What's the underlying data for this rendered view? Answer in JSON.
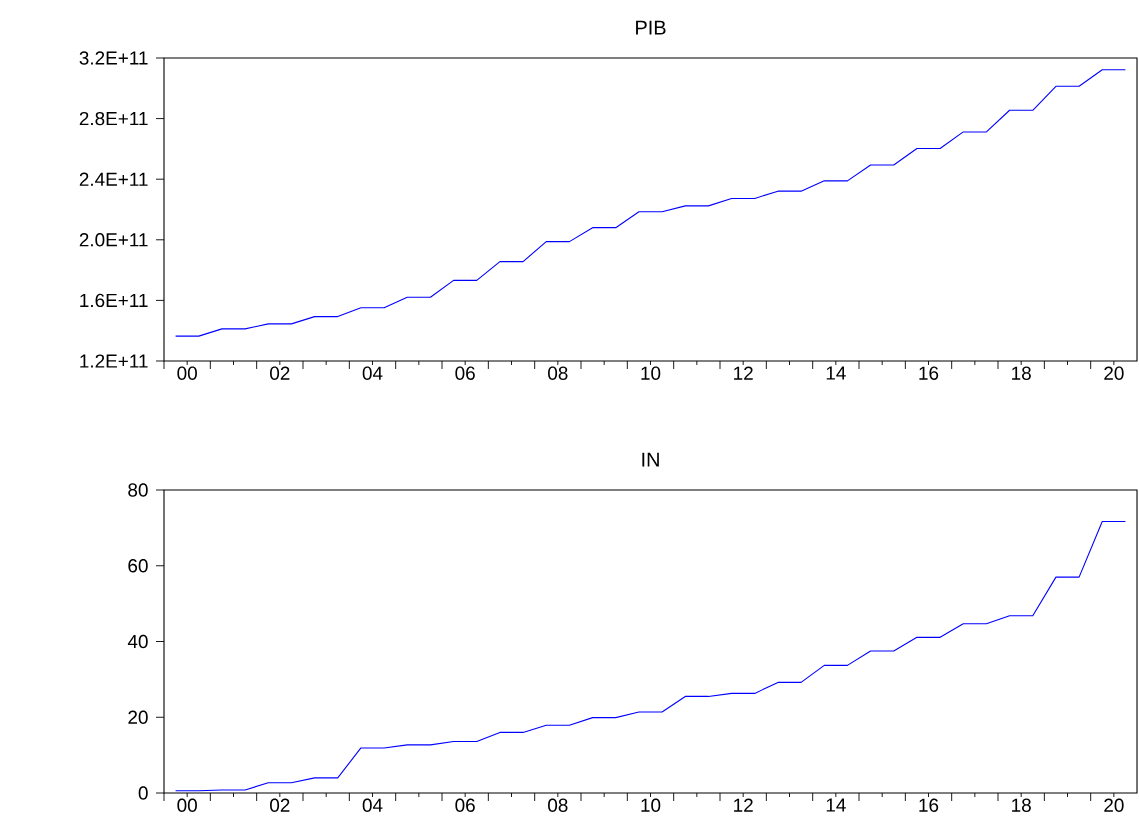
{
  "chart_data": [
    {
      "type": "line",
      "title": "PIB",
      "grid": false,
      "x": [
        "2000-04",
        "2000-10",
        "2001-04",
        "2001-10",
        "2002-04",
        "2002-10",
        "2003-04",
        "2003-10",
        "2004-04",
        "2004-10",
        "2005-04",
        "2005-10",
        "2006-04",
        "2006-10",
        "2007-04",
        "2007-10",
        "2008-04",
        "2008-10",
        "2009-04",
        "2009-10",
        "2010-04",
        "2010-10",
        "2011-04",
        "2011-10",
        "2012-04",
        "2012-10",
        "2013-04",
        "2013-10",
        "2014-04",
        "2014-10",
        "2015-04",
        "2015-10",
        "2016-04",
        "2016-10",
        "2017-04",
        "2017-10",
        "2018-04",
        "2018-10",
        "2019-04",
        "2019-10",
        "2020-04",
        "2020-10"
      ],
      "series": [
        {
          "color": "#0000ff",
          "values": [
            136400000000.0,
            136400000000.0,
            141200000000.0,
            141200000000.0,
            144500000000.0,
            144500000000.0,
            149300000000.0,
            149300000000.0,
            155100000000.0,
            155100000000.0,
            162100000000.0,
            162100000000.0,
            173200000000.0,
            173200000000.0,
            185600000000.0,
            185600000000.0,
            198800000000.0,
            198800000000.0,
            208000000000.0,
            208000000000.0,
            218500000000.0,
            218500000000.0,
            222400000000.0,
            222400000000.0,
            227300000000.0,
            227300000000.0,
            232100000000.0,
            232100000000.0,
            238900000000.0,
            238900000000.0,
            249400000000.0,
            249400000000.0,
            260300000000.0,
            260300000000.0,
            271200000000.0,
            271200000000.0,
            285500000000.0,
            285500000000.0,
            301300000000.0,
            301300000000.0,
            312200000000.0,
            312200000000.0
          ]
        }
      ],
      "ylim": [
        120000000000.0,
        320000000000.0
      ],
      "yticks": [
        {
          "value": 120000000000.0,
          "label": "1.2E+11"
        },
        {
          "value": 160000000000.0,
          "label": "1.6E+11"
        },
        {
          "value": 200000000000.0,
          "label": "2.0E+11"
        },
        {
          "value": 240000000000.0,
          "label": "2.4E+11"
        },
        {
          "value": 280000000000.0,
          "label": "2.8E+11"
        },
        {
          "value": 320000000000.0,
          "label": "3.2E+11"
        }
      ],
      "xlim": [
        "2000",
        "2021"
      ],
      "xticks": [
        {
          "value": "2000",
          "label": null
        },
        {
          "value": "2001",
          "label": null
        },
        {
          "value": "2002",
          "label": null
        },
        {
          "value": "2003",
          "label": null
        },
        {
          "value": "2004",
          "label": null
        },
        {
          "value": "2005",
          "label": null
        },
        {
          "value": "2006",
          "label": null
        },
        {
          "value": "2007",
          "label": null
        },
        {
          "value": "2008",
          "label": null
        },
        {
          "value": "2009",
          "label": null
        },
        {
          "value": "2010",
          "label": null
        },
        {
          "value": "2011",
          "label": null
        },
        {
          "value": "2012",
          "label": null
        },
        {
          "value": "2013",
          "label": null
        },
        {
          "value": "2014",
          "label": null
        },
        {
          "value": "2015",
          "label": null
        },
        {
          "value": "2016",
          "label": null
        },
        {
          "value": "2017",
          "label": null
        },
        {
          "value": "2018",
          "label": null
        },
        {
          "value": "2019",
          "label": null
        },
        {
          "value": "2020",
          "label": null
        },
        {
          "value": "2000-07",
          "label": "00"
        },
        {
          "value": "2001-07",
          "label": null
        },
        {
          "value": "2002-07",
          "label": "02"
        },
        {
          "value": "2003-07",
          "label": null
        },
        {
          "value": "2004-07",
          "label": "04"
        },
        {
          "value": "2005-07",
          "label": null
        },
        {
          "value": "2006-07",
          "label": "06"
        },
        {
          "value": "2007-07",
          "label": null
        },
        {
          "value": "2008-07",
          "label": "08"
        },
        {
          "value": "2009-07",
          "label": null
        },
        {
          "value": "2010-07",
          "label": "10"
        },
        {
          "value": "2011-07",
          "label": null
        },
        {
          "value": "2012-07",
          "label": "12"
        },
        {
          "value": "2013-07",
          "label": null
        },
        {
          "value": "2014-07",
          "label": "14"
        },
        {
          "value": "2015-07",
          "label": null
        },
        {
          "value": "2016-07",
          "label": "16"
        },
        {
          "value": "2017-07",
          "label": null
        },
        {
          "value": "2018-07",
          "label": "18"
        },
        {
          "value": "2019-07",
          "label": null
        },
        {
          "value": "2020-07",
          "label": "20"
        }
      ]
    },
    {
      "type": "line",
      "title": "IN",
      "grid": false,
      "x": [
        "2000-04",
        "2000-10",
        "2001-04",
        "2001-10",
        "2002-04",
        "2002-10",
        "2003-04",
        "2003-10",
        "2004-04",
        "2004-10",
        "2005-04",
        "2005-10",
        "2006-04",
        "2006-10",
        "2007-04",
        "2007-10",
        "2008-04",
        "2008-10",
        "2009-04",
        "2009-10",
        "2010-04",
        "2010-10",
        "2011-04",
        "2011-10",
        "2012-04",
        "2012-10",
        "2013-04",
        "2013-10",
        "2014-04",
        "2014-10",
        "2015-04",
        "2015-10",
        "2016-04",
        "2016-10",
        "2017-04",
        "2017-10",
        "2018-04",
        "2018-10",
        "2019-04",
        "2019-10",
        "2020-04",
        "2020-10"
      ],
      "series": [
        {
          "color": "#0000ff",
          "values": [
            0.6,
            0.6,
            0.8,
            0.8,
            2.7,
            2.7,
            4.0,
            4.0,
            11.9,
            11.9,
            12.7,
            12.7,
            13.6,
            13.6,
            16.0,
            16.0,
            17.9,
            17.9,
            19.9,
            19.9,
            21.4,
            21.4,
            25.5,
            25.5,
            26.3,
            26.3,
            29.2,
            29.2,
            33.7,
            33.7,
            37.5,
            37.5,
            41.1,
            41.1,
            44.7,
            44.7,
            46.8,
            46.8,
            57.0,
            57.0,
            71.7,
            71.7
          ]
        }
      ],
      "ylim": [
        0,
        80
      ],
      "yticks": [
        0,
        20,
        40,
        60,
        80
      ],
      "xlim": [
        "2000",
        "2021"
      ],
      "xticks": [
        {
          "value": "2000",
          "label": null
        },
        {
          "value": "2001",
          "label": null
        },
        {
          "value": "2002",
          "label": null
        },
        {
          "value": "2003",
          "label": null
        },
        {
          "value": "2004",
          "label": null
        },
        {
          "value": "2005",
          "label": null
        },
        {
          "value": "2006",
          "label": null
        },
        {
          "value": "2007",
          "label": null
        },
        {
          "value": "2008",
          "label": null
        },
        {
          "value": "2009",
          "label": null
        },
        {
          "value": "2010",
          "label": null
        },
        {
          "value": "2011",
          "label": null
        },
        {
          "value": "2012",
          "label": null
        },
        {
          "value": "2013",
          "label": null
        },
        {
          "value": "2014",
          "label": null
        },
        {
          "value": "2015",
          "label": null
        },
        {
          "value": "2016",
          "label": null
        },
        {
          "value": "2017",
          "label": null
        },
        {
          "value": "2018",
          "label": null
        },
        {
          "value": "2019",
          "label": null
        },
        {
          "value": "2020",
          "label": null
        },
        {
          "value": "2000-07",
          "label": "00"
        },
        {
          "value": "2001-07",
          "label": null
        },
        {
          "value": "2002-07",
          "label": "02"
        },
        {
          "value": "2003-07",
          "label": null
        },
        {
          "value": "2004-07",
          "label": "04"
        },
        {
          "value": "2005-07",
          "label": null
        },
        {
          "value": "2006-07",
          "label": "06"
        },
        {
          "value": "2007-07",
          "label": null
        },
        {
          "value": "2008-07",
          "label": "08"
        },
        {
          "value": "2009-07",
          "label": null
        },
        {
          "value": "2010-07",
          "label": "10"
        },
        {
          "value": "2011-07",
          "label": null
        },
        {
          "value": "2012-07",
          "label": "12"
        },
        {
          "value": "2013-07",
          "label": null
        },
        {
          "value": "2014-07",
          "label": "14"
        },
        {
          "value": "2015-07",
          "label": null
        },
        {
          "value": "2016-07",
          "label": "16"
        },
        {
          "value": "2017-07",
          "label": null
        },
        {
          "value": "2018-07",
          "label": "18"
        },
        {
          "value": "2019-07",
          "label": null
        },
        {
          "value": "2020-07",
          "label": "20"
        }
      ]
    }
  ]
}
